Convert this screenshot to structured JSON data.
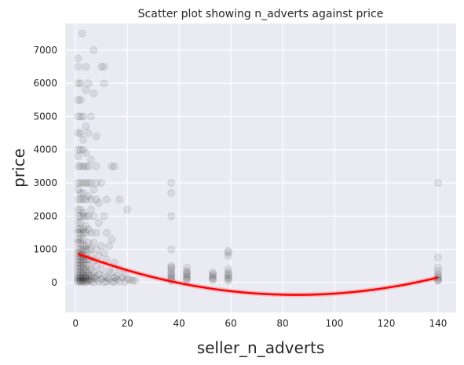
{
  "chart_data": {
    "type": "scatter",
    "title": "Scatter plot showing n_adverts against price",
    "xlabel": "seller_n_adverts",
    "ylabel": "price",
    "xlim": [
      -4,
      147
    ],
    "ylim": [
      -900,
      7800
    ],
    "xticks": [
      0,
      20,
      40,
      60,
      80,
      100,
      120,
      140
    ],
    "yticks": [
      0,
      1000,
      2000,
      3000,
      4000,
      5000,
      6000,
      7000
    ],
    "grid": true,
    "background": "#eaeaf2",
    "point_color": "#000000",
    "point_alpha": 0.08,
    "fit_color": "#ff0000",
    "fit": {
      "type": "polynomial",
      "degree": 2,
      "x_range": [
        1,
        140
      ],
      "points": [
        [
          1,
          780
        ],
        [
          20,
          430
        ],
        [
          40,
          100
        ],
        [
          60,
          -270
        ],
        [
          82,
          -430
        ],
        [
          100,
          -390
        ],
        [
          120,
          -170
        ],
        [
          140,
          200
        ]
      ]
    },
    "points": [
      [
        2.5,
        7500
      ],
      [
        7,
        7000
      ],
      [
        1,
        6750
      ],
      [
        1,
        6500
      ],
      [
        4,
        6500
      ],
      [
        10,
        6500
      ],
      [
        11,
        6500
      ],
      [
        1,
        6000
      ],
      [
        2,
        6000
      ],
      [
        5,
        6000
      ],
      [
        11,
        6000
      ],
      [
        4,
        5800
      ],
      [
        7,
        5700
      ],
      [
        1,
        5500
      ],
      [
        2,
        5500
      ],
      [
        1,
        5000
      ],
      [
        2,
        5000
      ],
      [
        3,
        5000
      ],
      [
        6,
        5000
      ],
      [
        4,
        4700
      ],
      [
        1,
        4500
      ],
      [
        2,
        4500
      ],
      [
        5,
        4500
      ],
      [
        3,
        4300
      ],
      [
        8,
        4400
      ],
      [
        1,
        4000
      ],
      [
        2,
        4000
      ],
      [
        3,
        4000
      ],
      [
        1,
        3800
      ],
      [
        4,
        3900
      ],
      [
        6,
        3700
      ],
      [
        1,
        3500
      ],
      [
        2,
        3500
      ],
      [
        3,
        3500
      ],
      [
        4,
        3500
      ],
      [
        5,
        3500
      ],
      [
        8,
        3500
      ],
      [
        14,
        3500
      ],
      [
        15,
        3500
      ],
      [
        1,
        3000
      ],
      [
        2,
        3000
      ],
      [
        3,
        3000
      ],
      [
        4,
        3000
      ],
      [
        5,
        3000
      ],
      [
        6,
        3000
      ],
      [
        8,
        3000
      ],
      [
        10,
        3000
      ],
      [
        1,
        2800
      ],
      [
        2,
        2700
      ],
      [
        3,
        2700
      ],
      [
        5,
        2600
      ],
      [
        7,
        2800
      ],
      [
        12,
        2500
      ],
      [
        17,
        2500
      ],
      [
        1,
        2500
      ],
      [
        2,
        2500
      ],
      [
        3,
        2500
      ],
      [
        4,
        2500
      ],
      [
        6,
        2500
      ],
      [
        8,
        2500
      ],
      [
        9,
        2400
      ],
      [
        1,
        2200
      ],
      [
        2,
        2200
      ],
      [
        3,
        2100
      ],
      [
        5,
        2000
      ],
      [
        6,
        2200
      ],
      [
        7,
        2000
      ],
      [
        11,
        2000
      ],
      [
        20,
        2200
      ],
      [
        1,
        2000
      ],
      [
        2,
        2000
      ],
      [
        3,
        2000
      ],
      [
        4,
        2000
      ],
      [
        1,
        1800
      ],
      [
        2,
        1800
      ],
      [
        4,
        1700
      ],
      [
        9,
        1800
      ],
      [
        1,
        1600
      ],
      [
        2,
        1600
      ],
      [
        3,
        1600
      ],
      [
        5,
        1600
      ],
      [
        6,
        1500
      ],
      [
        8,
        1500
      ],
      [
        12,
        1500
      ],
      [
        14,
        1300
      ],
      [
        1,
        1500
      ],
      [
        2,
        1500
      ],
      [
        3,
        1500
      ],
      [
        4,
        1500
      ],
      [
        1,
        1300
      ],
      [
        2,
        1300
      ],
      [
        3,
        1300
      ],
      [
        7,
        1200
      ],
      [
        1,
        1200
      ],
      [
        2,
        1200
      ],
      [
        3,
        1100
      ],
      [
        4,
        1100
      ],
      [
        5,
        1200
      ],
      [
        10,
        1100
      ],
      [
        13,
        1100
      ],
      [
        1,
        1000
      ],
      [
        2,
        1000
      ],
      [
        3,
        1000
      ],
      [
        4,
        1000
      ],
      [
        5,
        1000
      ],
      [
        6,
        1000
      ],
      [
        8,
        1000
      ],
      [
        11,
        900
      ],
      [
        1,
        900
      ],
      [
        2,
        900
      ],
      [
        3,
        850
      ],
      [
        4,
        800
      ],
      [
        1,
        800
      ],
      [
        2,
        800
      ],
      [
        3,
        800
      ],
      [
        6,
        800
      ],
      [
        9,
        800
      ],
      [
        1,
        700
      ],
      [
        2,
        700
      ],
      [
        3,
        700
      ],
      [
        4,
        700
      ],
      [
        5,
        700
      ],
      [
        7,
        650
      ],
      [
        12,
        700
      ],
      [
        15,
        600
      ],
      [
        1,
        600
      ],
      [
        2,
        600
      ],
      [
        3,
        600
      ],
      [
        4,
        550
      ],
      [
        1,
        500
      ],
      [
        2,
        500
      ],
      [
        3,
        500
      ],
      [
        5,
        500
      ],
      [
        8,
        500
      ],
      [
        1,
        400
      ],
      [
        2,
        400
      ],
      [
        3,
        400
      ],
      [
        4,
        400
      ],
      [
        6,
        400
      ],
      [
        10,
        400
      ],
      [
        13,
        350
      ],
      [
        17,
        400
      ],
      [
        1,
        300
      ],
      [
        2,
        300
      ],
      [
        3,
        300
      ],
      [
        4,
        300
      ],
      [
        5,
        300
      ],
      [
        7,
        300
      ],
      [
        9,
        250
      ],
      [
        14,
        300
      ],
      [
        1,
        200
      ],
      [
        2,
        200
      ],
      [
        3,
        200
      ],
      [
        4,
        200
      ],
      [
        5,
        200
      ],
      [
        6,
        200
      ],
      [
        8,
        200
      ],
      [
        11,
        200
      ],
      [
        16,
        200
      ],
      [
        19,
        250
      ],
      [
        1,
        150
      ],
      [
        2,
        150
      ],
      [
        3,
        150
      ],
      [
        4,
        150
      ],
      [
        7,
        150
      ],
      [
        12,
        150
      ],
      [
        15,
        150
      ],
      [
        18,
        150
      ],
      [
        1,
        100
      ],
      [
        2,
        100
      ],
      [
        3,
        100
      ],
      [
        4,
        100
      ],
      [
        5,
        100
      ],
      [
        6,
        100
      ],
      [
        8,
        100
      ],
      [
        10,
        100
      ],
      [
        13,
        100
      ],
      [
        16,
        100
      ],
      [
        20,
        100
      ],
      [
        21,
        80
      ],
      [
        22,
        60
      ],
      [
        23,
        50
      ],
      [
        1,
        50
      ],
      [
        2,
        50
      ],
      [
        3,
        50
      ],
      [
        4,
        50
      ],
      [
        5,
        50
      ],
      [
        6,
        40
      ],
      [
        9,
        30
      ],
      [
        12,
        30
      ],
      [
        14,
        30
      ],
      [
        17,
        40
      ],
      [
        1,
        20
      ],
      [
        2,
        20
      ],
      [
        3,
        20
      ],
      [
        4,
        10
      ],
      [
        7,
        10
      ],
      [
        11,
        10
      ],
      [
        15,
        20
      ],
      [
        19,
        20
      ],
      [
        37,
        3000
      ],
      [
        37,
        2700
      ],
      [
        37,
        2000
      ],
      [
        37,
        1000
      ],
      [
        37,
        500
      ],
      [
        37,
        450
      ],
      [
        37,
        400
      ],
      [
        37,
        300
      ],
      [
        37,
        250
      ],
      [
        37,
        200
      ],
      [
        37,
        150
      ],
      [
        37,
        100
      ],
      [
        37,
        50
      ],
      [
        43,
        450
      ],
      [
        43,
        350
      ],
      [
        43,
        300
      ],
      [
        43,
        250
      ],
      [
        43,
        200
      ],
      [
        43,
        150
      ],
      [
        43,
        100
      ],
      [
        43,
        80
      ],
      [
        53,
        300
      ],
      [
        53,
        250
      ],
      [
        53,
        200
      ],
      [
        53,
        150
      ],
      [
        53,
        100
      ],
      [
        53,
        80
      ],
      [
        59,
        950
      ],
      [
        59,
        900
      ],
      [
        59,
        800
      ],
      [
        59,
        400
      ],
      [
        59,
        300
      ],
      [
        59,
        250
      ],
      [
        59,
        200
      ],
      [
        59,
        150
      ],
      [
        59,
        100
      ],
      [
        59,
        60
      ],
      [
        140,
        3000
      ],
      [
        140,
        750
      ],
      [
        140,
        450
      ],
      [
        140,
        350
      ],
      [
        140,
        250
      ],
      [
        140,
        200
      ],
      [
        140,
        150
      ],
      [
        140,
        100
      ],
      [
        140,
        80
      ],
      [
        140,
        50
      ]
    ]
  }
}
